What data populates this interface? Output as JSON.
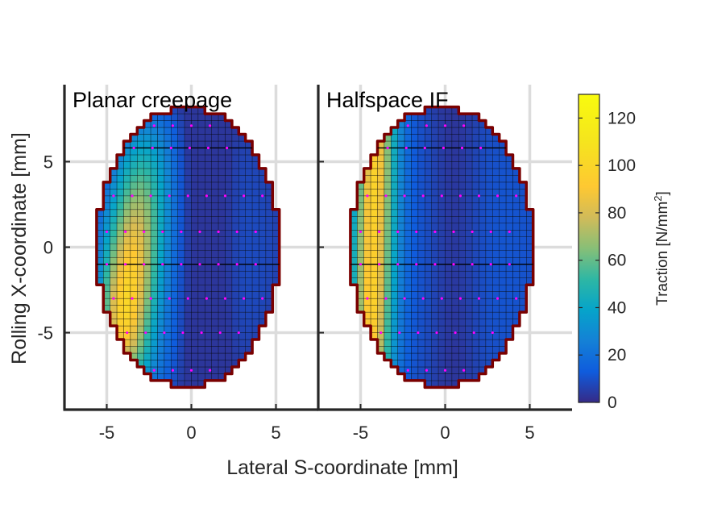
{
  "chart_data": {
    "type": "heatmap",
    "xlabel": "Lateral S-coordinate [mm]",
    "ylabel": "Rolling X-coordinate [mm]",
    "xlim": [
      -7.5,
      7.5
    ],
    "ylim": [
      -9.5,
      9.5
    ],
    "xticks": [
      -5,
      0,
      5
    ],
    "yticks": [
      -5,
      0,
      5
    ],
    "xtick_labels": [
      "-5",
      "0",
      "5"
    ],
    "ytick_labels": [
      "-5",
      "0",
      "5"
    ],
    "grid": true,
    "contact_patch": {
      "semi_axis_s_mm": 5.4,
      "semi_axis_x_mm": 8.2,
      "center_s_mm": -0.2,
      "center_x_mm": 0,
      "cell_mm": 0.4
    },
    "colorbar": {
      "label": "Traction [N/mm",
      "label_sup": "2",
      "label_end": "]",
      "range": [
        0,
        130
      ],
      "ticks": [
        0,
        20,
        40,
        60,
        80,
        100,
        120
      ],
      "tick_labels": [
        "0",
        "20",
        "40",
        "60",
        "80",
        "100",
        "120"
      ],
      "colormap": "parula"
    },
    "panels": [
      {
        "title": "Planar creepage",
        "peak_traction": 115,
        "peak_location_mm": [
          -3.8,
          -4.0
        ],
        "min_traction": 5,
        "marker_color": "#ff00ff"
      },
      {
        "title": "Halfspace IF",
        "peak_traction": 105,
        "peak_location_mm": [
          -4.4,
          0.0
        ],
        "min_traction": 5,
        "marker_color": "#ff00ff"
      }
    ]
  },
  "colors": {
    "outline": "#7a0000",
    "axes": "#262626",
    "grid": "#dcdcdc",
    "markers": "#ff00ff"
  }
}
